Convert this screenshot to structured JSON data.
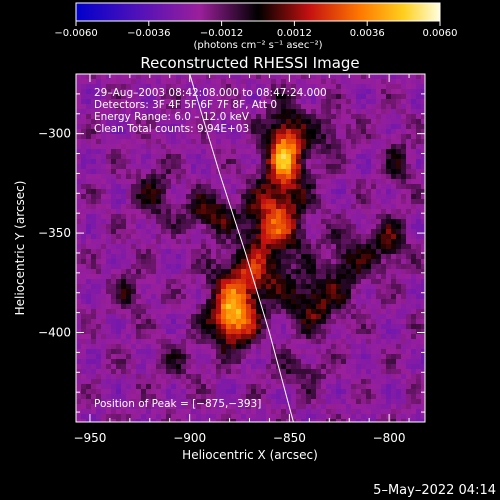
{
  "chart_data": {
    "type": "heatmap",
    "title": "Reconstructed RHESSI Image",
    "xlabel": "Heliocentric X (arcsec)",
    "ylabel": "Heliocentric Y (arcsec)",
    "xlim": [
      -957,
      -782
    ],
    "ylim": [
      -445,
      -270
    ],
    "x_ticks": [
      -950,
      -900,
      -850,
      -800
    ],
    "y_ticks": [
      -300,
      -350,
      -400
    ],
    "x_tick_labels": [
      "−950",
      "−900",
      "−850",
      "−800"
    ],
    "y_tick_labels": [
      "−300",
      "−350",
      "−400"
    ],
    "colorbar": {
      "min": -0.006,
      "max": 0.006,
      "ticks": [
        -0.006,
        -0.0036,
        -0.0012,
        0.0012,
        0.0036,
        0.006
      ],
      "tick_labels": [
        "−0.0060",
        "−0.0036",
        "−0.0012",
        "0.0012",
        "0.0036",
        "0.0060"
      ],
      "units_label": "(photons cm⁻² s⁻¹ asec⁻²)",
      "colormap": [
        "#0000cc",
        "#6a16b0",
        "#9b1f9b",
        "#000000",
        "#c41010",
        "#ff7800",
        "#ffcf1e",
        "#ffffe0"
      ]
    },
    "annotations": {
      "time": "29–Aug–2003 08:42:08.000 to 08:47:24.000",
      "detectors": "Detectors: 3F 4F 5F 6F 7F 8F, Att 0",
      "energy": "Energy Range: 6.0 – 12.0 keV",
      "clean": "Clean     Total counts: 9.94E+03",
      "peak": "Position of Peak = [−875,−393]"
    },
    "peak": {
      "x": -875,
      "y": -393
    },
    "sources": [
      {
        "x": -878,
        "y": -392,
        "value": 0.0066,
        "sx": 8,
        "sy": 10
      },
      {
        "x": -852,
        "y": -310,
        "value": 0.0062,
        "sx": 7,
        "sy": 14
      },
      {
        "x": -858,
        "y": -345,
        "value": 0.0046,
        "sx": 10,
        "sy": 12
      },
      {
        "x": -890,
        "y": -340,
        "value": 0.003,
        "sx": 8,
        "sy": 7
      },
      {
        "x": -870,
        "y": -372,
        "value": 0.0035,
        "sx": 12,
        "sy": 9
      },
      {
        "x": -918,
        "y": -330,
        "value": 0.002,
        "sx": 7,
        "sy": 10
      },
      {
        "x": -838,
        "y": -385,
        "value": 0.003,
        "sx": 9,
        "sy": 10
      },
      {
        "x": -820,
        "y": -365,
        "value": 0.0022,
        "sx": 8,
        "sy": 12
      },
      {
        "x": -800,
        "y": -355,
        "value": 0.0024,
        "sx": 6,
        "sy": 9
      },
      {
        "x": -795,
        "y": -315,
        "value": 0.0018,
        "sx": 5,
        "sy": 9
      },
      {
        "x": -930,
        "y": -380,
        "value": 0.0016,
        "sx": 6,
        "sy": 8
      },
      {
        "x": -830,
        "y": -300,
        "value": 0.0016,
        "sx": 7,
        "sy": 8
      },
      {
        "x": -905,
        "y": -415,
        "value": 0.0012,
        "sx": 10,
        "sy": 7
      },
      {
        "x": -845,
        "y": -420,
        "value": 0.0014,
        "sx": 10,
        "sy": 6
      }
    ],
    "limb_curve": [
      [
        -900,
        -270
      ],
      [
        -885,
        -320
      ],
      [
        -872,
        -360
      ],
      [
        -860,
        -400
      ],
      [
        -848,
        -445
      ]
    ],
    "grid": false,
    "legend": "none"
  },
  "footer": {
    "timestamp": "5–May–2022 04:14"
  }
}
